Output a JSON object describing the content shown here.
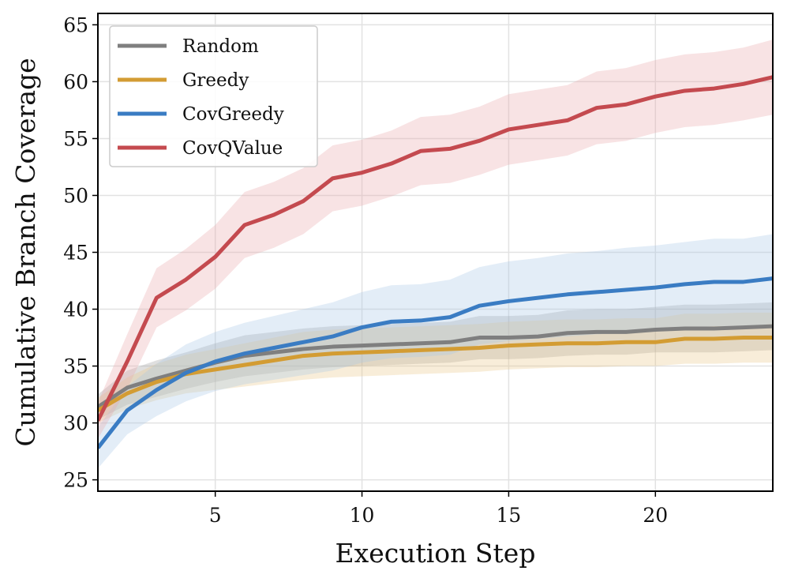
{
  "chart_data": {
    "type": "line",
    "title": "",
    "xlabel": "Execution Step",
    "ylabel": "Cumulative Branch Coverage",
    "xlim": [
      1,
      24
    ],
    "ylim": [
      24,
      66
    ],
    "xticks": [
      5,
      10,
      15,
      20
    ],
    "yticks": [
      25,
      30,
      35,
      40,
      45,
      50,
      55,
      60,
      65
    ],
    "grid": true,
    "legend_position": "top-left",
    "x": [
      1,
      2,
      3,
      4,
      5,
      6,
      7,
      8,
      9,
      10,
      11,
      12,
      13,
      14,
      15,
      16,
      17,
      18,
      19,
      20,
      21,
      22,
      23,
      24
    ],
    "series": [
      {
        "name": "Random",
        "color": "#7f7f7f",
        "band_color": "#9a9a9a",
        "values": [
          31.4,
          33.1,
          33.9,
          34.6,
          35.3,
          35.9,
          36.2,
          36.5,
          36.7,
          36.8,
          36.9,
          37.0,
          37.1,
          37.5,
          37.5,
          37.6,
          37.9,
          38.0,
          38.0,
          38.2,
          38.3,
          38.3,
          38.4,
          38.5
        ],
        "lower": [
          30.3,
          31.6,
          32.3,
          33.0,
          33.6,
          34.1,
          34.4,
          34.7,
          34.9,
          35.0,
          35.1,
          35.2,
          35.3,
          35.6,
          35.6,
          35.7,
          35.9,
          36.0,
          36.0,
          36.2,
          36.2,
          36.2,
          36.3,
          36.4
        ],
        "upper": [
          32.5,
          34.6,
          35.5,
          36.2,
          37.0,
          37.7,
          38.0,
          38.3,
          38.5,
          38.6,
          38.7,
          38.8,
          38.9,
          39.4,
          39.4,
          39.5,
          39.9,
          40.0,
          40.0,
          40.2,
          40.4,
          40.4,
          40.5,
          40.6
        ]
      },
      {
        "name": "Greedy",
        "color": "#d39c33",
        "band_color": "#e8c889",
        "values": [
          31.1,
          32.6,
          33.6,
          34.3,
          34.7,
          35.1,
          35.5,
          35.9,
          36.1,
          36.2,
          36.3,
          36.4,
          36.5,
          36.6,
          36.8,
          36.9,
          37.0,
          37.0,
          37.1,
          37.1,
          37.4,
          37.4,
          37.5,
          37.5
        ],
        "lower": [
          30.0,
          31.2,
          32.0,
          32.6,
          32.9,
          33.2,
          33.5,
          33.8,
          34.0,
          34.1,
          34.2,
          34.3,
          34.4,
          34.5,
          34.7,
          34.8,
          34.9,
          34.9,
          35.0,
          35.0,
          35.2,
          35.2,
          35.3,
          35.3
        ],
        "upper": [
          32.2,
          34.0,
          35.2,
          36.0,
          36.5,
          37.0,
          37.5,
          38.0,
          38.2,
          38.3,
          38.4,
          38.5,
          38.6,
          38.7,
          38.9,
          39.0,
          39.1,
          39.1,
          39.2,
          39.2,
          39.6,
          39.6,
          39.7,
          39.7
        ]
      },
      {
        "name": "CovGreedy",
        "color": "#3a7cc3",
        "band_color": "#a9c6e6",
        "values": [
          27.8,
          31.1,
          32.9,
          34.4,
          35.4,
          36.1,
          36.6,
          37.1,
          37.6,
          38.4,
          38.9,
          39.0,
          39.3,
          40.3,
          40.7,
          41.0,
          41.3,
          41.5,
          41.7,
          41.9,
          42.2,
          42.4,
          42.4,
          42.7
        ],
        "lower": [
          26.0,
          29.0,
          30.6,
          31.9,
          32.8,
          33.4,
          33.8,
          34.2,
          34.6,
          35.3,
          35.7,
          35.8,
          36.0,
          36.9,
          37.2,
          37.4,
          37.6,
          37.8,
          37.9,
          38.1,
          38.4,
          38.5,
          38.5,
          38.7
        ],
        "upper": [
          29.6,
          33.2,
          35.2,
          36.9,
          38.0,
          38.8,
          39.4,
          40.0,
          40.6,
          41.5,
          42.1,
          42.2,
          42.6,
          43.7,
          44.2,
          44.5,
          44.9,
          45.1,
          45.4,
          45.6,
          45.9,
          46.2,
          46.2,
          46.6
        ]
      },
      {
        "name": "CovQValue",
        "color": "#c44a4f",
        "band_color": "#e8a9ab",
        "values": [
          30.2,
          35.4,
          41.0,
          42.6,
          44.6,
          47.4,
          48.3,
          49.5,
          51.5,
          52.0,
          52.8,
          53.9,
          54.1,
          54.8,
          55.8,
          56.2,
          56.6,
          57.7,
          58.0,
          58.7,
          59.2,
          59.4,
          59.8,
          60.4
        ],
        "lower": [
          28.6,
          33.0,
          38.4,
          39.9,
          41.8,
          44.5,
          45.4,
          46.6,
          48.6,
          49.1,
          49.9,
          50.9,
          51.1,
          51.8,
          52.7,
          53.1,
          53.5,
          54.5,
          54.8,
          55.5,
          56.0,
          56.2,
          56.6,
          57.1
        ],
        "upper": [
          31.8,
          37.8,
          43.6,
          45.3,
          47.4,
          50.3,
          51.2,
          52.4,
          54.4,
          54.9,
          55.7,
          56.9,
          57.1,
          57.8,
          58.9,
          59.3,
          59.7,
          60.9,
          61.2,
          61.9,
          62.4,
          62.6,
          63.0,
          63.7
        ]
      }
    ]
  }
}
